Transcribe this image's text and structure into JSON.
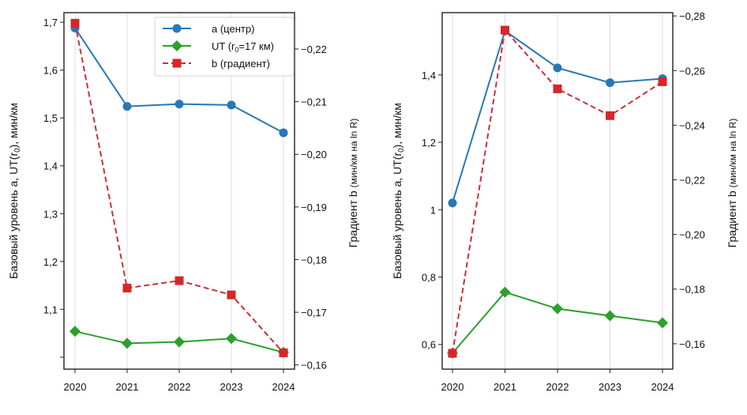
{
  "chart_data": [
    {
      "type": "line",
      "panel": "left",
      "title": "",
      "x": [
        2020,
        2021,
        2022,
        2023,
        2024
      ],
      "xticks": [
        "2020",
        "2021",
        "2022",
        "2023",
        "2024"
      ],
      "xlabel": "",
      "ylabel_left": {
        "prefix": "Базовый уровень a, UT(r",
        "sub": "0",
        "suffix": "), мин/км"
      },
      "ylabel_right": {
        "main": "Градиент b ",
        "small": "(мин/км на ln R)"
      },
      "ylim_left": [
        0.975,
        1.72
      ],
      "yticks_left": [
        {
          "v": 1.0,
          "label": ""
        },
        {
          "v": 1.1,
          "label": "1,1"
        },
        {
          "v": 1.2,
          "label": "1,2"
        },
        {
          "v": 1.3,
          "label": "1,3"
        },
        {
          "v": 1.4,
          "label": "1,4"
        },
        {
          "v": 1.5,
          "label": "1,5"
        },
        {
          "v": 1.6,
          "label": "1,6"
        },
        {
          "v": 1.7,
          "label": "1,7"
        }
      ],
      "ylim_right": [
        -0.1592,
        -0.2269
      ],
      "yticks_right": [
        {
          "v": -0.16,
          "label": "−0,16"
        },
        {
          "v": -0.17,
          "label": "−0,17"
        },
        {
          "v": -0.18,
          "label": "−0,18"
        },
        {
          "v": -0.19,
          "label": "−0,19"
        },
        {
          "v": -0.2,
          "label": "−0,20"
        },
        {
          "v": -0.21,
          "label": "−0,21"
        },
        {
          "v": -0.22,
          "label": "−0,22"
        }
      ],
      "grid": "vertical",
      "legend_position": "top-right",
      "series": [
        {
          "name": "a (центр)",
          "axis": "left",
          "color": "#2878b5",
          "marker": "circle",
          "dash": false,
          "values": [
            1.688,
            1.524,
            1.529,
            1.527,
            1.469
          ]
        },
        {
          "name": "UT (r₀=17 км)",
          "axis": "left",
          "color": "#2ca02c",
          "marker": "diamond",
          "dash": false,
          "values": [
            1.054,
            1.029,
            1.032,
            1.039,
            1.01
          ]
        },
        {
          "name": "b (градиент)",
          "axis": "right",
          "color": "#d62728",
          "marker": "square",
          "dash": true,
          "values": [
            -0.2249,
            -0.1746,
            -0.176,
            -0.1733,
            -0.1623
          ]
        }
      ],
      "legend": [
        {
          "label": "a (центр)",
          "series": 0
        },
        {
          "label_prefix": "UT (r",
          "label_sub": "0",
          "label_suffix": "=17 км)",
          "series": 1
        },
        {
          "label": "b (градиент)",
          "series": 2
        }
      ]
    },
    {
      "type": "line",
      "panel": "right",
      "title": "",
      "x": [
        2020,
        2021,
        2022,
        2023,
        2024
      ],
      "xticks": [
        "2020",
        "2021",
        "2022",
        "2023",
        "2024"
      ],
      "xlabel": "",
      "ylabel_left": {
        "prefix": "Базовый уровень a, UT(r",
        "sub": "0",
        "suffix": "), мин/км"
      },
      "ylabel_right": {
        "main": "Градиент b ",
        "small": "(мин/км на ln R)"
      },
      "ylim_left": [
        0.5265,
        1.585
      ],
      "yticks_left": [
        {
          "v": 0.6,
          "label": "0,6"
        },
        {
          "v": 0.8,
          "label": "0,8"
        },
        {
          "v": 1.0,
          "label": "1"
        },
        {
          "v": 1.2,
          "label": "1,2"
        },
        {
          "v": 1.4,
          "label": "1,4"
        }
      ],
      "ylim_right": [
        -0.1507,
        -0.2812
      ],
      "yticks_right": [
        {
          "v": -0.16,
          "label": "−0,16"
        },
        {
          "v": -0.18,
          "label": "−0,18"
        },
        {
          "v": -0.2,
          "label": "−0,20"
        },
        {
          "v": -0.22,
          "label": "−0,22"
        },
        {
          "v": -0.24,
          "label": "−0,24"
        },
        {
          "v": -0.26,
          "label": "−0,26"
        },
        {
          "v": -0.28,
          "label": "−0,28"
        }
      ],
      "grid": "vertical",
      "legend_position": "none",
      "series": [
        {
          "name": "a (центр)",
          "axis": "left",
          "color": "#2878b5",
          "marker": "circle",
          "dash": false,
          "values": [
            1.02,
            1.531,
            1.421,
            1.377,
            1.389
          ]
        },
        {
          "name": "UT (r₀=17 км)",
          "axis": "left",
          "color": "#2ca02c",
          "marker": "diamond",
          "dash": false,
          "values": [
            0.574,
            0.755,
            0.706,
            0.685,
            0.664
          ]
        },
        {
          "name": "b (градиент)",
          "axis": "right",
          "color": "#d62728",
          "marker": "square",
          "dash": true,
          "values": [
            -0.1565,
            -0.2748,
            -0.2533,
            -0.2435,
            -0.2559
          ]
        }
      ]
    }
  ]
}
